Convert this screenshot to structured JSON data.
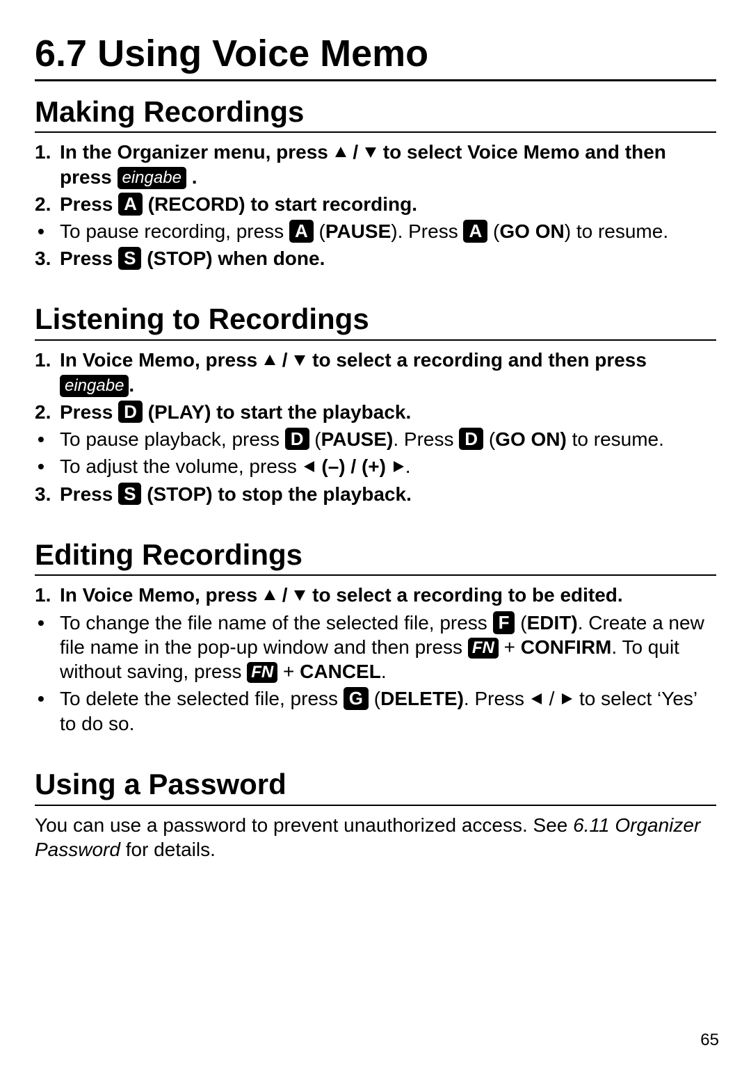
{
  "page_number": "65",
  "title": "6.7 Using Voice Memo",
  "keys": {
    "eingabe": "eingabe",
    "A": "A",
    "S": "S",
    "D": "D",
    "F": "F",
    "G": "G",
    "FN": "FN"
  },
  "sections": [
    {
      "heading": "Making Recordings",
      "items": [
        {
          "type": "num",
          "n": "1.",
          "bold": true,
          "parts": [
            "In the Organizer menu, press ",
            {
              "icon": "up"
            },
            " / ",
            {
              "icon": "down"
            },
            " to select Voice Memo and then press ",
            {
              "key": "eingabe",
              "wide": true
            },
            " ."
          ]
        },
        {
          "type": "num",
          "n": "2.",
          "bold": true,
          "parts": [
            "Press ",
            {
              "key": "A"
            },
            " (RECORD) to start recording."
          ]
        },
        {
          "type": "bullet",
          "parts": [
            "To pause recording, press ",
            {
              "key": "A"
            },
            " (",
            {
              "b": "PAUSE"
            },
            "). Press ",
            {
              "key": "A"
            },
            " (",
            {
              "b": "GO ON"
            },
            ") to resume."
          ]
        },
        {
          "type": "num",
          "n": "3.",
          "bold": true,
          "parts": [
            "Press ",
            {
              "key": "S"
            },
            " (STOP) when done."
          ]
        }
      ]
    },
    {
      "heading": "Listening to Recordings",
      "items": [
        {
          "type": "num",
          "n": "1.",
          "bold": true,
          "parts": [
            "In Voice Memo, press ",
            {
              "icon": "up"
            },
            " / ",
            {
              "icon": "down"
            },
            " to select a recording and then press ",
            {
              "key": "eingabe",
              "wide": true
            },
            "."
          ]
        },
        {
          "type": "num",
          "n": "2.",
          "bold": true,
          "parts": [
            "Press ",
            {
              "key": "D"
            },
            " (PLAY) to start the playback."
          ]
        },
        {
          "type": "bullet",
          "parts": [
            "To pause playback, press ",
            {
              "key": "D"
            },
            " (",
            {
              "b": "PAUSE)"
            },
            ". Press ",
            {
              "key": "D"
            },
            " (",
            {
              "b": "GO ON)"
            },
            " to resume."
          ]
        },
        {
          "type": "bullet",
          "parts": [
            "To adjust the volume, press ",
            {
              "icon": "left"
            },
            {
              "b": " (–) / (+) "
            },
            {
              "icon": "right"
            },
            "."
          ]
        },
        {
          "type": "num",
          "n": "3.",
          "bold": true,
          "parts": [
            "Press ",
            {
              "key": "S"
            },
            " (STOP) to stop the playback."
          ]
        }
      ]
    },
    {
      "heading": "Editing Recordings",
      "items": [
        {
          "type": "num",
          "n": "1.",
          "bold": true,
          "parts": [
            "In Voice Memo, press ",
            {
              "icon": "up"
            },
            " / ",
            {
              "icon": "down"
            },
            " to select a recording to be edited."
          ]
        },
        {
          "type": "bullet",
          "parts": [
            "To change the file name of the selected file, press ",
            {
              "key": "F"
            },
            " (",
            {
              "b": "EDIT)"
            },
            ". Create a new file name in the pop-up window and then press ",
            {
              "key": "FN",
              "fn": true
            },
            " + ",
            {
              "b": "CONFIRM"
            },
            ". To quit without saving, press ",
            {
              "key": "FN",
              "fn": true
            },
            " + ",
            {
              "b": "CANCEL"
            },
            "."
          ]
        },
        {
          "type": "bullet",
          "parts": [
            "To delete the selected file, press ",
            {
              "key": "G"
            },
            " (",
            {
              "b": "DELETE)"
            },
            ". Press ",
            {
              "icon": "left"
            },
            " / ",
            {
              "icon": "right"
            },
            " to select ‘Yes’ to do so."
          ]
        }
      ]
    },
    {
      "heading": "Using a Password",
      "paragraph": [
        "You can use a password to prevent unauthorized access. See ",
        {
          "i": "6.11 Organizer Password"
        },
        " for details."
      ]
    }
  ]
}
